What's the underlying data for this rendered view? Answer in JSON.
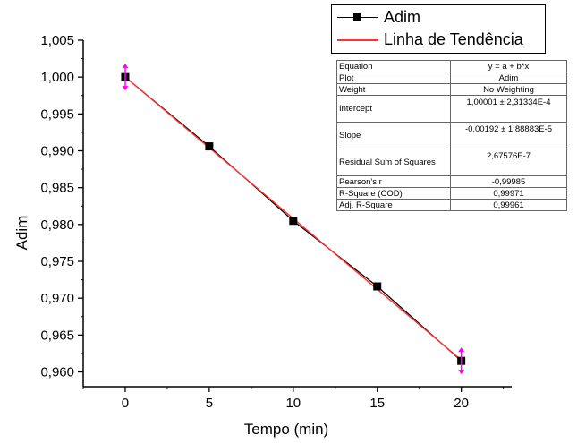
{
  "chart_data": {
    "type": "scatter",
    "xlabel": "Tempo (min)",
    "ylabel": "Adim",
    "xlim": [
      -2.5,
      23
    ],
    "ylim": [
      0.958,
      1.005
    ],
    "x_ticks": [
      "0",
      "5",
      "10",
      "15",
      "20"
    ],
    "y_ticks": [
      "1,005",
      "1,000",
      "0,995",
      "0,990",
      "0,985",
      "0,980",
      "0,975",
      "0,970",
      "0,965",
      "0,960"
    ],
    "grid": false,
    "legend_position": "top-right",
    "series": [
      {
        "name": "Adim",
        "style": "line+square-markers",
        "color": "#000000",
        "x": [
          0,
          5,
          10,
          15,
          20
        ],
        "y": [
          1.0,
          0.9906,
          0.9805,
          0.9716,
          0.9615
        ]
      },
      {
        "name": "Linha de Tendência",
        "style": "line",
        "color": "#ff3030",
        "x": [
          0,
          20
        ],
        "y": [
          1.00001,
          0.96161
        ]
      }
    ],
    "error_bars": {
      "color": "#ff00ff",
      "x": [
        0,
        20
      ],
      "y": [
        1.0,
        0.9615
      ]
    },
    "fit_table": [
      {
        "key": "Equation",
        "value": "y = a + b*x"
      },
      {
        "key": "Plot",
        "value": "Adim"
      },
      {
        "key": "Weight",
        "value": "No Weighting"
      },
      {
        "key": "Intercept",
        "value": "1,00001 ± 2,31334E-4"
      },
      {
        "key": "Slope",
        "value": "-0,00192 ± 1,88883E-5"
      },
      {
        "key": "Residual Sum of Squares",
        "value": "2,67576E-7"
      },
      {
        "key": "Pearson's r",
        "value": "-0,99985"
      },
      {
        "key": "R-Square (COD)",
        "value": "0,99971"
      },
      {
        "key": "Adj. R-Square",
        "value": "0,99961"
      }
    ]
  }
}
